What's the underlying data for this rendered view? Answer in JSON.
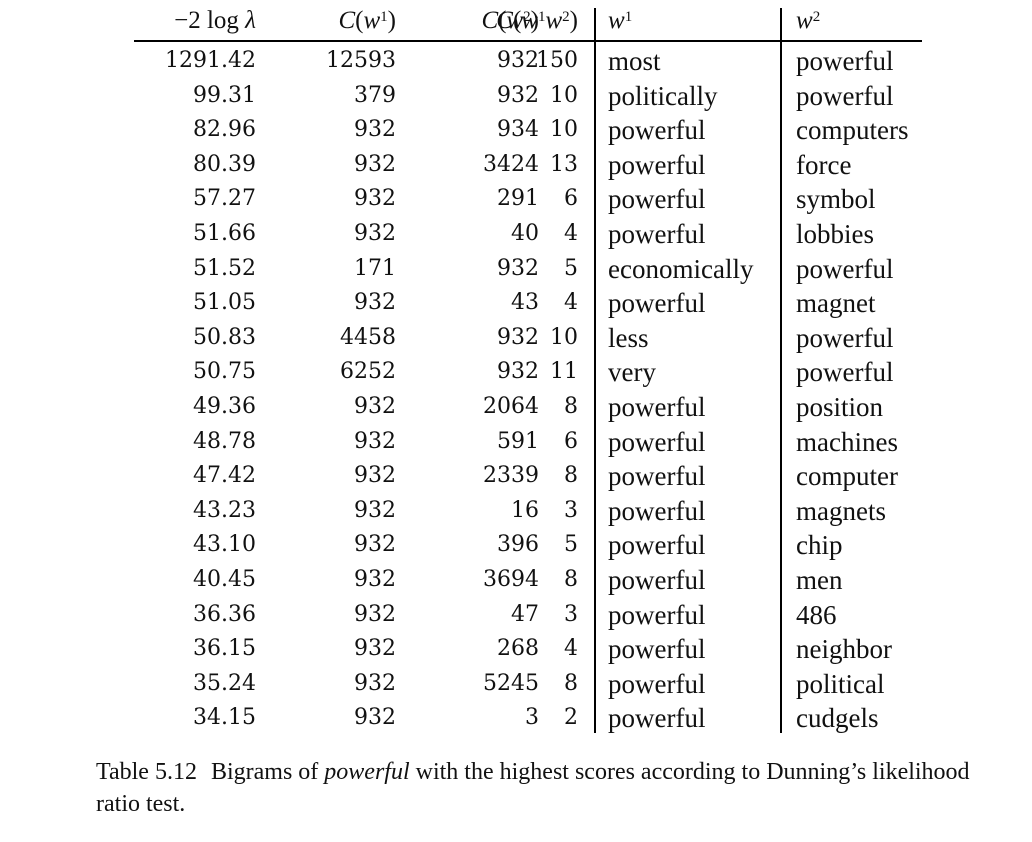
{
  "table": {
    "headers": {
      "score": "−2 log λ",
      "cw1": "C(w¹)",
      "cw2": "C(w²)",
      "cw1w2": "C(w¹w²)",
      "w1": "w¹",
      "w2": "w²"
    },
    "rows": [
      {
        "score": "1291.42",
        "cw1": "12593",
        "cw2": "932",
        "cw1w2": "150",
        "w1": "most",
        "w2": "powerful"
      },
      {
        "score": "99.31",
        "cw1": "379",
        "cw2": "932",
        "cw1w2": "10",
        "w1": "politically",
        "w2": "powerful"
      },
      {
        "score": "82.96",
        "cw1": "932",
        "cw2": "934",
        "cw1w2": "10",
        "w1": "powerful",
        "w2": "computers"
      },
      {
        "score": "80.39",
        "cw1": "932",
        "cw2": "3424",
        "cw1w2": "13",
        "w1": "powerful",
        "w2": "force"
      },
      {
        "score": "57.27",
        "cw1": "932",
        "cw2": "291",
        "cw1w2": "6",
        "w1": "powerful",
        "w2": "symbol"
      },
      {
        "score": "51.66",
        "cw1": "932",
        "cw2": "40",
        "cw1w2": "4",
        "w1": "powerful",
        "w2": "lobbies"
      },
      {
        "score": "51.52",
        "cw1": "171",
        "cw2": "932",
        "cw1w2": "5",
        "w1": "economically",
        "w2": "powerful"
      },
      {
        "score": "51.05",
        "cw1": "932",
        "cw2": "43",
        "cw1w2": "4",
        "w1": "powerful",
        "w2": "magnet"
      },
      {
        "score": "50.83",
        "cw1": "4458",
        "cw2": "932",
        "cw1w2": "10",
        "w1": "less",
        "w2": "powerful"
      },
      {
        "score": "50.75",
        "cw1": "6252",
        "cw2": "932",
        "cw1w2": "11",
        "w1": "very",
        "w2": "powerful"
      },
      {
        "score": "49.36",
        "cw1": "932",
        "cw2": "2064",
        "cw1w2": "8",
        "w1": "powerful",
        "w2": "position"
      },
      {
        "score": "48.78",
        "cw1": "932",
        "cw2": "591",
        "cw1w2": "6",
        "w1": "powerful",
        "w2": "machines"
      },
      {
        "score": "47.42",
        "cw1": "932",
        "cw2": "2339",
        "cw1w2": "8",
        "w1": "powerful",
        "w2": "computer"
      },
      {
        "score": "43.23",
        "cw1": "932",
        "cw2": "16",
        "cw1w2": "3",
        "w1": "powerful",
        "w2": "magnets"
      },
      {
        "score": "43.10",
        "cw1": "932",
        "cw2": "396",
        "cw1w2": "5",
        "w1": "powerful",
        "w2": "chip"
      },
      {
        "score": "40.45",
        "cw1": "932",
        "cw2": "3694",
        "cw1w2": "8",
        "w1": "powerful",
        "w2": "men"
      },
      {
        "score": "36.36",
        "cw1": "932",
        "cw2": "47",
        "cw1w2": "3",
        "w1": "powerful",
        "w2": "486"
      },
      {
        "score": "36.15",
        "cw1": "932",
        "cw2": "268",
        "cw1w2": "4",
        "w1": "powerful",
        "w2": "neighbor"
      },
      {
        "score": "35.24",
        "cw1": "932",
        "cw2": "5245",
        "cw1w2": "8",
        "w1": "powerful",
        "w2": "political"
      },
      {
        "score": "34.15",
        "cw1": "932",
        "cw2": "3",
        "cw1w2": "2",
        "w1": "powerful",
        "w2": "cudgels"
      }
    ]
  },
  "caption": {
    "label": "Table 5.12",
    "text_before": "Bigrams of ",
    "emphasis": "powerful",
    "text_after": " with the highest scores according to Dunning’s likelihood ratio test."
  }
}
